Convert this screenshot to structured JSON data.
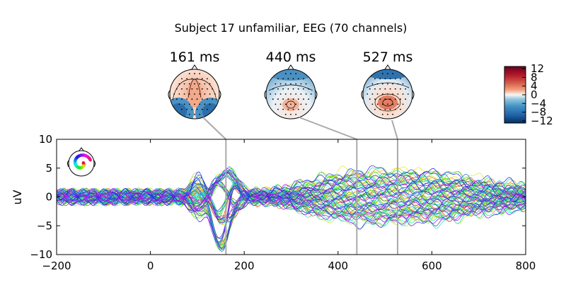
{
  "chart_data": {
    "type": "line",
    "title": "Subject 17 unfamiliar, EEG (70 channels)",
    "xlabel": "",
    "ylabel": "uV",
    "xlim": [
      -200,
      800
    ],
    "ylim": [
      -10,
      10
    ],
    "xticks": [
      "−200",
      "0",
      "200",
      "400",
      "600",
      "800"
    ],
    "xtick_values": [
      -200,
      0,
      200,
      400,
      600,
      800
    ],
    "yticks": [
      "10",
      "5",
      "0",
      "−5",
      "−10"
    ],
    "ytick_values": [
      10,
      5,
      0,
      -5,
      -10
    ],
    "grid": false,
    "n_channels": 70,
    "channel_colors": "one color per channel from the sensor-position inset (rainbow: red, yellow, green, cyan, blue, purple)",
    "topomaps": [
      {
        "time_ms": 161,
        "label": "161 ms",
        "pattern": "positive frontal/central, negative temporal-occipital"
      },
      {
        "time_ms": 440,
        "label": "440 ms",
        "pattern": "negative frontal, mild positive central"
      },
      {
        "time_ms": 527,
        "label": "527 ms",
        "pattern": "negative frontal, positive central-parietal"
      }
    ],
    "time_markers_ms": [
      161,
      440,
      527
    ],
    "colorbar": {
      "ticks": [
        "12",
        "8",
        "4",
        "0",
        "−4",
        "−8",
        "−12"
      ],
      "tick_values": [
        12,
        8,
        4,
        0,
        -4,
        -8,
        -12
      ],
      "range": [
        -13,
        13
      ],
      "colormap": "RdBu_r"
    },
    "envelope_range_uV": [
      {
        "x": -200,
        "min": -2.2,
        "max": 1.9
      },
      {
        "x": 100,
        "min": -1.8,
        "max": 3.5
      },
      {
        "x": 130,
        "min": -9.5,
        "max": 1.0
      },
      {
        "x": 161,
        "min": -10.0,
        "max": 4.5
      },
      {
        "x": 200,
        "min": -3.0,
        "max": 3.5
      },
      {
        "x": 300,
        "min": -3.5,
        "max": 4.0
      },
      {
        "x": 400,
        "min": -5.0,
        "max": 4.5
      },
      {
        "x": 527,
        "min": -6.5,
        "max": 5.0
      },
      {
        "x": 650,
        "min": -5.5,
        "max": 3.5
      },
      {
        "x": 800,
        "min": -2.0,
        "max": 0.5
      }
    ]
  },
  "colors": {
    "axes": "#000000",
    "marker_lines": "#aaaaaa",
    "positive": "#b2182b",
    "negative": "#2166ac"
  }
}
